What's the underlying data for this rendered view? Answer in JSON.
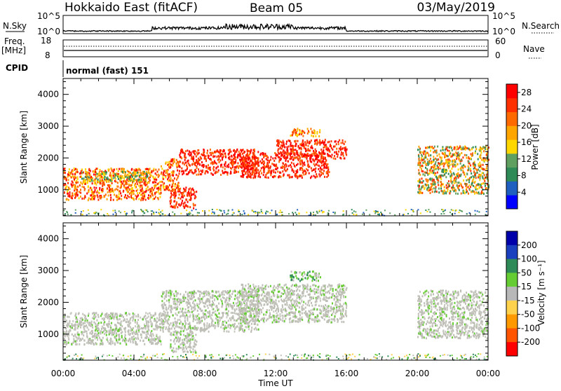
{
  "header": {
    "station": "Hokkaido East (fitACF)",
    "beam": "Beam 05",
    "date": "03/May/2019"
  },
  "side_labels": {
    "nsky": "N.Sky",
    "nsearch": "N.Search",
    "freq_line1": "Freq.",
    "freq_line2": "[MHz]",
    "nave": "Nave",
    "cpid": "CPID",
    "cpid_value": "normal (fast) 151"
  },
  "strip_ticks": {
    "noise_left": [
      "10^5",
      "10^0"
    ],
    "noise_right": [
      "10^5",
      "10^0"
    ],
    "freq_left": [
      "18",
      "8"
    ],
    "nave_right": [
      "60",
      "0"
    ]
  },
  "colors": {
    "power_scale": [
      "#0000ff",
      "#1f5fbf",
      "#2e8b57",
      "#5f9f5f",
      "#ffd700",
      "#ffa500",
      "#ff6a00",
      "#ff3000",
      "#ff0000"
    ],
    "velocity_scale": [
      "#0000aa",
      "#1a3fbf",
      "#2e8b57",
      "#66cc33",
      "#b8b8b8",
      "#ffd24d",
      "#ff9900",
      "#ff5500",
      "#ff0000"
    ],
    "ground_scatter": "#bebeb6"
  },
  "chart_data": [
    {
      "type": "heatmap",
      "panel": "power",
      "ylabel": "Slant Range [km]",
      "ylim": [
        180,
        4500
      ],
      "yticks": [
        "1000",
        "2000",
        "3000",
        "4000"
      ],
      "xlim_hours": [
        0,
        24
      ],
      "colorbar": {
        "label": "Power [dB]",
        "ticks": [
          "4",
          "8",
          "12",
          "16",
          "20",
          "24",
          "28"
        ],
        "range": [
          0,
          30
        ]
      },
      "regions": [
        {
          "t0": 0.0,
          "t1": 5.5,
          "r0": 700,
          "r1": 1700,
          "level": "orange-red"
        },
        {
          "t0": 1.0,
          "t1": 4.8,
          "r0": 1300,
          "r1": 1600,
          "level": "yellow-green"
        },
        {
          "t0": 5.5,
          "t1": 6.5,
          "r0": 1000,
          "r1": 2000,
          "level": "orange-red"
        },
        {
          "t0": 6.0,
          "t1": 7.5,
          "r0": 450,
          "r1": 1100,
          "level": "red"
        },
        {
          "t0": 6.5,
          "t1": 11.0,
          "r0": 1500,
          "r1": 2300,
          "level": "red"
        },
        {
          "t0": 10.0,
          "t1": 15.0,
          "r0": 1400,
          "r1": 2200,
          "level": "red"
        },
        {
          "t0": 12.0,
          "t1": 16.0,
          "r0": 2000,
          "r1": 2600,
          "level": "red"
        },
        {
          "t0": 12.8,
          "t1": 14.5,
          "r0": 2700,
          "r1": 2950,
          "level": "orange"
        },
        {
          "t0": 20.0,
          "t1": 24.0,
          "r0": 900,
          "r1": 2400,
          "level": "orange-green"
        }
      ]
    },
    {
      "type": "heatmap",
      "panel": "velocity",
      "ylabel": "Slant Range [km]",
      "ylim": [
        180,
        4500
      ],
      "yticks": [
        "1000",
        "2000",
        "3000",
        "4000"
      ],
      "xlim_hours": [
        0,
        24
      ],
      "xticks": [
        "00:00",
        "04:00",
        "08:00",
        "12:00",
        "16:00",
        "20:00",
        "00:00"
      ],
      "xlabel": "Time UT",
      "colorbar": {
        "label": "Velocity [m s⁻¹]",
        "ticks": [
          "200",
          "100",
          "50",
          "15",
          "-15",
          "-50",
          "-100",
          "-200"
        ]
      },
      "regions": [
        {
          "t0": 0.0,
          "t1": 5.5,
          "r0": 700,
          "r1": 1700,
          "level": "ground-scatter"
        },
        {
          "t0": 5.5,
          "t1": 11.0,
          "r0": 1100,
          "r1": 2400,
          "level": "ground-scatter"
        },
        {
          "t0": 6.0,
          "t1": 7.5,
          "r0": 450,
          "r1": 1100,
          "level": "ground-scatter"
        },
        {
          "t0": 10.0,
          "t1": 16.0,
          "r0": 1400,
          "r1": 2600,
          "level": "ground-scatter"
        },
        {
          "t0": 12.8,
          "t1": 14.5,
          "r0": 2700,
          "r1": 3000,
          "level": "green"
        },
        {
          "t0": 20.0,
          "t1": 24.0,
          "r0": 900,
          "r1": 2400,
          "level": "ground-scatter"
        }
      ]
    }
  ]
}
